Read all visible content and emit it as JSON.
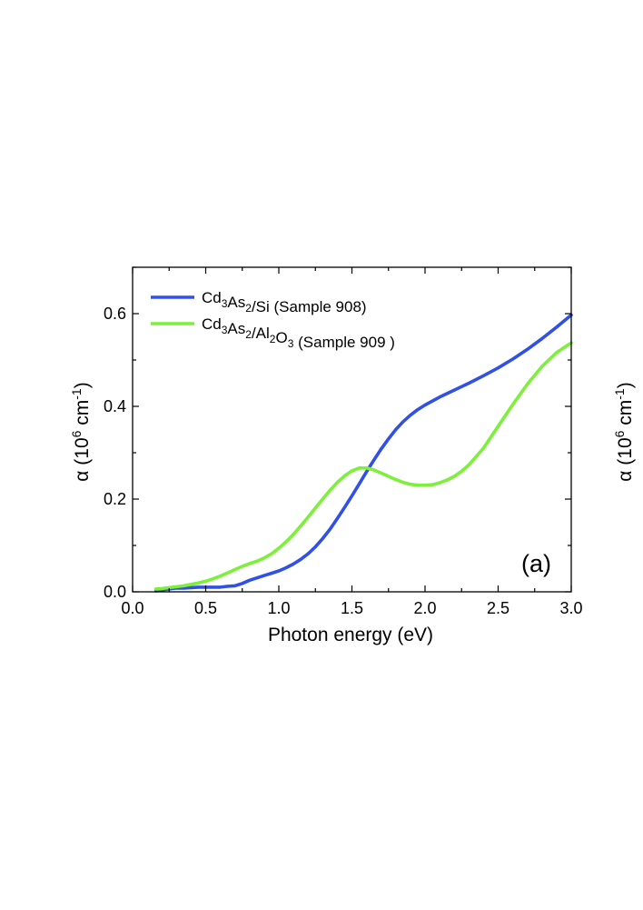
{
  "chart_data": {
    "type": "line",
    "title": "",
    "xlabel": "Photon energy (eV)",
    "ylabel": {
      "prefix": "α (10",
      "exp1": "6",
      "mid": " cm",
      "exp2": "-1",
      "suffix": ")"
    },
    "right_ylabel": {
      "prefix": "α (10",
      "exp1": "6",
      "mid": " cm",
      "exp2": "-1",
      "suffix": ")"
    },
    "xlim": [
      0.0,
      3.0
    ],
    "ylim": [
      0.0,
      0.7
    ],
    "x_ticks": [
      0.0,
      0.5,
      1.0,
      1.5,
      2.0,
      2.5,
      3.0
    ],
    "x_tick_labels": [
      "0.0",
      "0.5",
      "1.0",
      "1.5",
      "2.0",
      "2.5",
      "3.0"
    ],
    "y_ticks": [
      0.0,
      0.2,
      0.4,
      0.6
    ],
    "y_tick_labels": [
      "0.0",
      "0.2",
      "0.4",
      "0.6"
    ],
    "grid": false,
    "panel_label": "(a)",
    "legend_position": "top-left",
    "series": [
      {
        "name": "Cd3As2/Si (Sample 908)",
        "label_parts": [
          {
            "t": "Cd"
          },
          {
            "t": "3",
            "sub": true
          },
          {
            "t": "As"
          },
          {
            "t": "2",
            "sub": true
          },
          {
            "t": "/Si (Sample 908)"
          }
        ],
        "color": "#3050e6",
        "x": [
          0.16,
          0.2,
          0.25,
          0.3,
          0.35,
          0.4,
          0.45,
          0.5,
          0.55,
          0.6,
          0.65,
          0.7,
          0.75,
          0.8,
          0.85,
          0.9,
          0.95,
          1.0,
          1.05,
          1.1,
          1.15,
          1.2,
          1.25,
          1.3,
          1.35,
          1.4,
          1.45,
          1.5,
          1.55,
          1.6,
          1.65,
          1.7,
          1.75,
          1.8,
          1.85,
          1.9,
          1.95,
          2.0,
          2.1,
          2.2,
          2.3,
          2.4,
          2.5,
          2.6,
          2.7,
          2.8,
          2.9,
          3.0
        ],
        "y": [
          0.002,
          0.004,
          0.006,
          0.008,
          0.008,
          0.009,
          0.01,
          0.01,
          0.01,
          0.01,
          0.012,
          0.013,
          0.018,
          0.025,
          0.03,
          0.035,
          0.04,
          0.045,
          0.052,
          0.06,
          0.07,
          0.082,
          0.097,
          0.115,
          0.135,
          0.158,
          0.182,
          0.207,
          0.233,
          0.259,
          0.284,
          0.308,
          0.33,
          0.35,
          0.367,
          0.381,
          0.393,
          0.403,
          0.42,
          0.435,
          0.45,
          0.466,
          0.483,
          0.502,
          0.523,
          0.546,
          0.571,
          0.597
        ]
      },
      {
        "name": "Cd3As2/Al2O3 (Sample 909)",
        "label_parts": [
          {
            "t": "Cd"
          },
          {
            "t": "3",
            "sub": true
          },
          {
            "t": "As"
          },
          {
            "t": "2",
            "sub": true
          },
          {
            "t": "/Al"
          },
          {
            "t": "2",
            "sub": true
          },
          {
            "t": "O"
          },
          {
            "t": "3",
            "sub": true
          },
          {
            "t": " (Sample 909 )"
          }
        ],
        "color": "#7cf03a",
        "x": [
          0.16,
          0.2,
          0.25,
          0.3,
          0.35,
          0.4,
          0.45,
          0.5,
          0.55,
          0.6,
          0.65,
          0.7,
          0.75,
          0.8,
          0.85,
          0.9,
          0.95,
          1.0,
          1.05,
          1.1,
          1.15,
          1.2,
          1.25,
          1.3,
          1.35,
          1.4,
          1.45,
          1.5,
          1.55,
          1.6,
          1.65,
          1.7,
          1.75,
          1.8,
          1.85,
          1.9,
          1.95,
          2.0,
          2.05,
          2.1,
          2.15,
          2.2,
          2.25,
          2.3,
          2.4,
          2.5,
          2.6,
          2.7,
          2.8,
          2.9,
          3.0
        ],
        "y": [
          0.006,
          0.007,
          0.009,
          0.011,
          0.013,
          0.016,
          0.019,
          0.023,
          0.028,
          0.034,
          0.041,
          0.048,
          0.055,
          0.061,
          0.066,
          0.073,
          0.082,
          0.094,
          0.108,
          0.124,
          0.142,
          0.161,
          0.181,
          0.2,
          0.219,
          0.236,
          0.25,
          0.261,
          0.267,
          0.267,
          0.263,
          0.256,
          0.249,
          0.242,
          0.236,
          0.232,
          0.23,
          0.23,
          0.231,
          0.235,
          0.241,
          0.249,
          0.26,
          0.274,
          0.31,
          0.357,
          0.404,
          0.448,
          0.486,
          0.516,
          0.537
        ]
      }
    ]
  }
}
